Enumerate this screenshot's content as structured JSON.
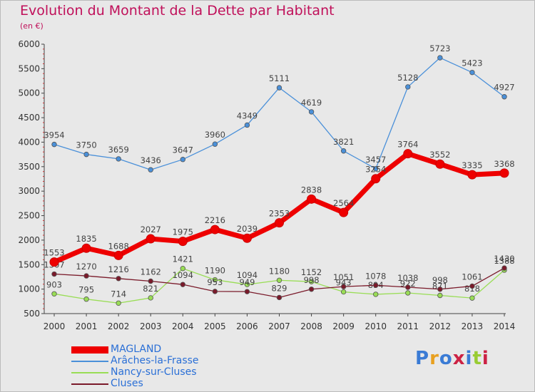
{
  "chart_data": {
    "type": "line",
    "title": "Evolution du Montant de la Dette par Habitant",
    "subtitle": "(en €)",
    "x": [
      "2000",
      "2001",
      "2002",
      "2003",
      "2004",
      "2005",
      "2006",
      "2007",
      "2008",
      "2009",
      "2010",
      "2011",
      "2012",
      "2013",
      "2014"
    ],
    "ylim": [
      500,
      6000
    ],
    "yticks": [
      500,
      1000,
      1500,
      2000,
      2500,
      3000,
      3500,
      4000,
      4500,
      5000,
      5500,
      6000
    ],
    "grid": false,
    "legend_position": "bottom-left",
    "series": [
      {
        "name": "MAGLAND",
        "color": "#ee0000",
        "values": [
          1553,
          1835,
          1688,
          2027,
          1975,
          2216,
          2039,
          2353,
          2838,
          2564,
          3254,
          3764,
          3552,
          3335,
          3368
        ]
      },
      {
        "name": "Arâches-la-Frasse",
        "color": "#4a90d9",
        "values": [
          3954,
          3750,
          3659,
          3436,
          3647,
          3960,
          4349,
          5111,
          4619,
          3821,
          3457,
          5128,
          5723,
          5423,
          4927
        ]
      },
      {
        "name": "Nancy-sur-Cluses",
        "color": "#99dd55",
        "values": [
          903,
          795,
          714,
          821,
          1421,
          1190,
          1094,
          1180,
          1152,
          943,
          894,
          922,
          871,
          818,
          1388
        ]
      },
      {
        "name": "Cluses",
        "color": "#7a1a2a",
        "values": [
          1307,
          1270,
          1216,
          1162,
          1094,
          953,
          949,
          829,
          998,
          1051,
          1078,
          1038,
          998,
          1061,
          1430
        ]
      }
    ]
  },
  "logo": {
    "text": "Proxiti"
  }
}
